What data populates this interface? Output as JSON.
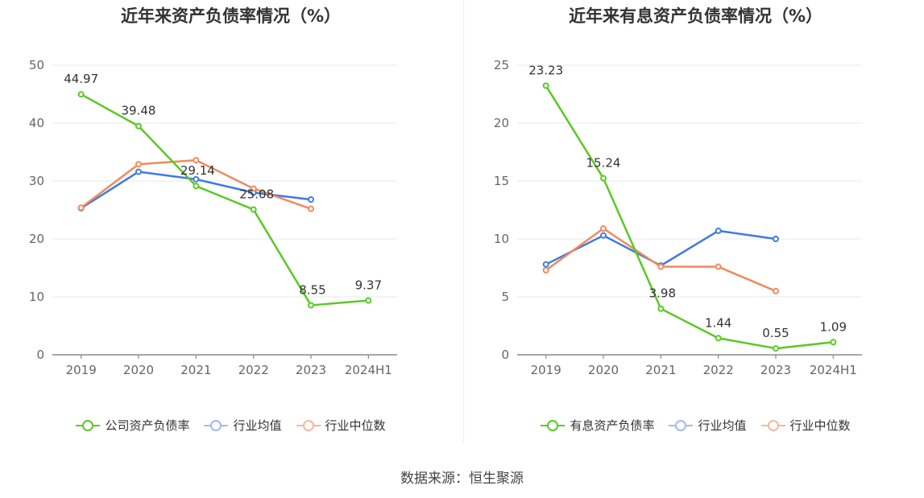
{
  "source_text": "数据来源：恒生聚源",
  "chart_data": [
    {
      "type": "line",
      "title": "近年来资产负债率情况（%）",
      "categories": [
        "2019",
        "2020",
        "2021",
        "2022",
        "2023",
        "2024H1"
      ],
      "ylim": [
        0,
        50
      ],
      "yticks": [
        "0",
        "10",
        "20",
        "30",
        "40",
        "50"
      ],
      "grid": true,
      "legend_position": "bottom",
      "series": [
        {
          "name": "公司资产负债率",
          "color": "#5ac925",
          "values": [
            44.97,
            39.48,
            29.14,
            25.08,
            8.55,
            9.37
          ],
          "labels": [
            "44.97",
            "39.48",
            "29.14",
            "25.08",
            "8.55",
            "9.37"
          ]
        },
        {
          "name": "行业均值",
          "color": "#3f7be0",
          "values": [
            25.3,
            31.6,
            30.3,
            28.0,
            26.8,
            null
          ]
        },
        {
          "name": "行业中位数",
          "color": "#f08a5d",
          "values": [
            25.4,
            32.9,
            33.6,
            28.7,
            25.2,
            null
          ]
        }
      ]
    },
    {
      "type": "line",
      "title": "近年来有息资产负债率情况（%）",
      "categories": [
        "2019",
        "2020",
        "2021",
        "2022",
        "2023",
        "2024H1"
      ],
      "ylim": [
        0,
        25
      ],
      "yticks": [
        "0",
        "5",
        "10",
        "15",
        "20",
        "25"
      ],
      "grid": true,
      "legend_position": "bottom",
      "series": [
        {
          "name": "有息资产负债率",
          "color": "#5ac925",
          "values": [
            23.23,
            15.24,
            3.98,
            1.44,
            0.55,
            1.09
          ],
          "labels": [
            "23.23",
            "15.24",
            "3.98",
            "1.44",
            "0.55",
            "1.09"
          ]
        },
        {
          "name": "行业均值",
          "color": "#3f7be0",
          "values": [
            7.8,
            10.3,
            7.7,
            10.7,
            10.0,
            null
          ]
        },
        {
          "name": "行业中位数",
          "color": "#f08a5d",
          "values": [
            7.3,
            10.9,
            7.6,
            7.6,
            5.5,
            null
          ]
        }
      ]
    }
  ]
}
